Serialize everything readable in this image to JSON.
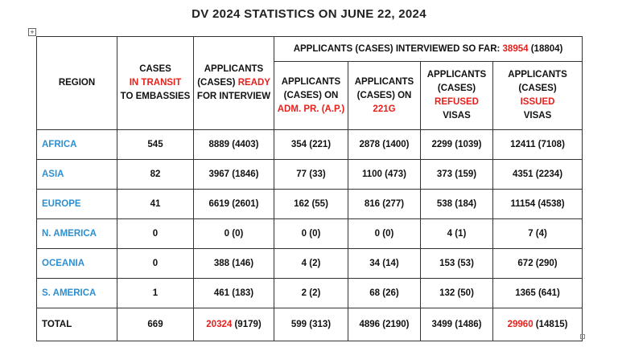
{
  "title": "DV 2024 STATISTICS ON JUNE 22, 2024",
  "table": {
    "group_header": [
      "APPLICANTS (CASES) INTERVIEWED SO FAR:",
      "38954",
      "(18804)"
    ],
    "headers": [
      [
        "REGION"
      ],
      [
        "CASES",
        "IN TRANSIT",
        "TO EMBASSIES"
      ],
      [
        "APPLICANTS (CASES)",
        "READY",
        "FOR INTERVIEW"
      ],
      [
        "APPLICANTS (CASES) ON",
        "ADM. PR. (A.P.)"
      ],
      [
        "APPLICANTS (CASES) ON",
        "221G"
      ],
      [
        "APPLICANTS (CASES)",
        "REFUSED",
        "VISAS"
      ],
      [
        "APPLICANTS (CASES)",
        "ISSUED",
        "VISAS"
      ]
    ],
    "rows": [
      [
        "AFRICA",
        "545",
        "8889 (4403)",
        "354 (221)",
        "2878 (1400)",
        "2299 (1039)",
        "12411 (7108)"
      ],
      [
        "ASIA",
        "82",
        "3967 (1846)",
        "77 (33)",
        "1100 (473)",
        "373 (159)",
        "4351 (2234)"
      ],
      [
        "EUROPE",
        "41",
        "6619 (2601)",
        "162 (55)",
        "816 (277)",
        "538 (184)",
        "11154 (4538)"
      ],
      [
        "N. AMERICA",
        "0",
        "0 (0)",
        "0 (0)",
        "0 (0)",
        "4 (1)",
        "7 (4)"
      ],
      [
        "OCEANIA",
        "0",
        "388 (146)",
        "4 (2)",
        "34 (14)",
        "153 (53)",
        "672 (290)"
      ],
      [
        "S. AMERICA",
        "1",
        "461 (183)",
        "2 (2)",
        "68 (26)",
        "132 (50)",
        "1365 (641)"
      ],
      [
        "TOTAL",
        "669",
        [
          "20324",
          "(9179)"
        ],
        "599 (313)",
        "4896 (2190)",
        "3499 (1486)",
        [
          "29960",
          "(14815)"
        ]
      ]
    ]
  }
}
